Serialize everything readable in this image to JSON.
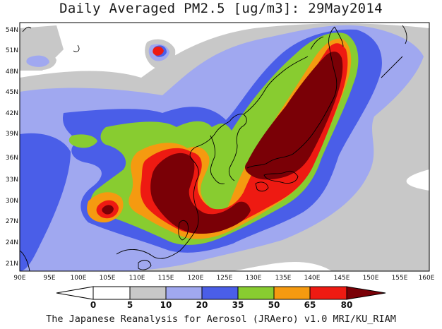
{
  "title": "Daily Averaged PM2.5 [ug/m3]: 29May2014",
  "footer": "The Japanese Reanalysis for Aerosol (JRAero) v1.0 MRI/KU_RIAM",
  "map": {
    "lon_min": 90,
    "lon_max": 160,
    "lat_min": 19.5,
    "lat_max": 55.5,
    "lat_ticks": [
      "54N",
      "51N",
      "48N",
      "45N",
      "42N",
      "39N",
      "36N",
      "33N",
      "30N",
      "27N",
      "24N",
      "21N"
    ],
    "lon_ticks": [
      "90E",
      "95E",
      "100E",
      "105E",
      "110E",
      "115E",
      "120E",
      "125E",
      "130E",
      "135E",
      "140E",
      "145E",
      "150E",
      "155E",
      "160E"
    ],
    "levels": [
      {
        "label": "0",
        "color": "#ffffff"
      },
      {
        "label": "5",
        "color": "#c8c8c8"
      },
      {
        "label": "10",
        "color": "#a0a8f0"
      },
      {
        "label": "20",
        "color": "#4a5ee8"
      },
      {
        "label": "35",
        "color": "#88cc30"
      },
      {
        "label": "50",
        "color": "#f59a10"
      },
      {
        "label": "65",
        "color": "#ee1a12"
      },
      {
        "label": "80",
        "color": "#7a0006"
      }
    ],
    "colorbar_labels": [
      "0",
      "5",
      "10",
      "20",
      "35",
      "50",
      "65",
      "80"
    ]
  }
}
